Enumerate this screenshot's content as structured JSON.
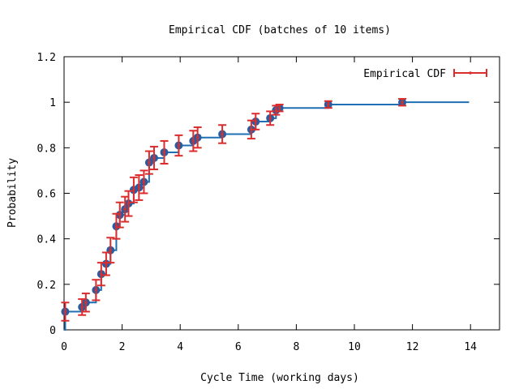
{
  "chart_data": {
    "type": "line",
    "title": "Empirical CDF (batches of 10 items)",
    "xlabel": "Cycle Time (working days)",
    "ylabel": "Probability",
    "xlim": [
      0,
      15
    ],
    "ylim": [
      0,
      1.2
    ],
    "xticks": [
      "0",
      "2",
      "4",
      "6",
      "8",
      "10",
      "12",
      "14"
    ],
    "yticks": [
      "0",
      "0.2",
      "0.4",
      "0.6",
      "0.8",
      "1",
      "1.2"
    ],
    "grid": false,
    "legend": {
      "position": "top-right",
      "entries": [
        "Empirical CDF"
      ]
    },
    "colors": {
      "step": "#1f6fb4",
      "marker": "#2b5d9e",
      "errorbar": "#dd2c2c",
      "axis": "#000000"
    },
    "step": {
      "x": [
        0.0,
        0.04,
        0.62,
        0.75,
        1.1,
        1.28,
        1.45,
        1.6,
        1.8,
        1.92,
        2.1,
        2.22,
        2.4,
        2.58,
        2.75,
        2.93,
        3.1,
        3.45,
        3.95,
        4.45,
        4.6,
        5.45,
        6.45,
        6.6,
        7.1,
        7.3,
        7.42,
        9.1,
        11.65,
        13.95
      ],
      "y": [
        0.0,
        0.08,
        0.1,
        0.12,
        0.175,
        0.245,
        0.29,
        0.35,
        0.455,
        0.505,
        0.53,
        0.555,
        0.615,
        0.625,
        0.65,
        0.735,
        0.755,
        0.78,
        0.81,
        0.83,
        0.845,
        0.86,
        0.88,
        0.915,
        0.93,
        0.965,
        0.975,
        0.99,
        1.0,
        1.0
      ]
    },
    "points": [
      {
        "x": 0.04,
        "y": 0.08,
        "err": 0.04
      },
      {
        "x": 0.62,
        "y": 0.1,
        "err": 0.035
      },
      {
        "x": 0.75,
        "y": 0.12,
        "err": 0.04
      },
      {
        "x": 1.1,
        "y": 0.175,
        "err": 0.045
      },
      {
        "x": 1.28,
        "y": 0.245,
        "err": 0.05
      },
      {
        "x": 1.45,
        "y": 0.29,
        "err": 0.05
      },
      {
        "x": 1.6,
        "y": 0.35,
        "err": 0.055
      },
      {
        "x": 1.8,
        "y": 0.455,
        "err": 0.055
      },
      {
        "x": 1.92,
        "y": 0.505,
        "err": 0.055
      },
      {
        "x": 2.1,
        "y": 0.53,
        "err": 0.055
      },
      {
        "x": 2.22,
        "y": 0.555,
        "err": 0.055
      },
      {
        "x": 2.4,
        "y": 0.615,
        "err": 0.055
      },
      {
        "x": 2.58,
        "y": 0.625,
        "err": 0.055
      },
      {
        "x": 2.75,
        "y": 0.65,
        "err": 0.05
      },
      {
        "x": 2.93,
        "y": 0.735,
        "err": 0.05
      },
      {
        "x": 3.1,
        "y": 0.755,
        "err": 0.05
      },
      {
        "x": 3.45,
        "y": 0.78,
        "err": 0.05
      },
      {
        "x": 3.95,
        "y": 0.81,
        "err": 0.045
      },
      {
        "x": 4.45,
        "y": 0.83,
        "err": 0.045
      },
      {
        "x": 4.6,
        "y": 0.845,
        "err": 0.045
      },
      {
        "x": 5.45,
        "y": 0.86,
        "err": 0.04
      },
      {
        "x": 6.45,
        "y": 0.88,
        "err": 0.04
      },
      {
        "x": 6.6,
        "y": 0.915,
        "err": 0.035
      },
      {
        "x": 7.1,
        "y": 0.93,
        "err": 0.03
      },
      {
        "x": 7.3,
        "y": 0.965,
        "err": 0.02
      },
      {
        "x": 7.42,
        "y": 0.975,
        "err": 0.015
      },
      {
        "x": 9.1,
        "y": 0.99,
        "err": 0.015
      },
      {
        "x": 11.65,
        "y": 1.0,
        "err": 0.015
      }
    ]
  }
}
